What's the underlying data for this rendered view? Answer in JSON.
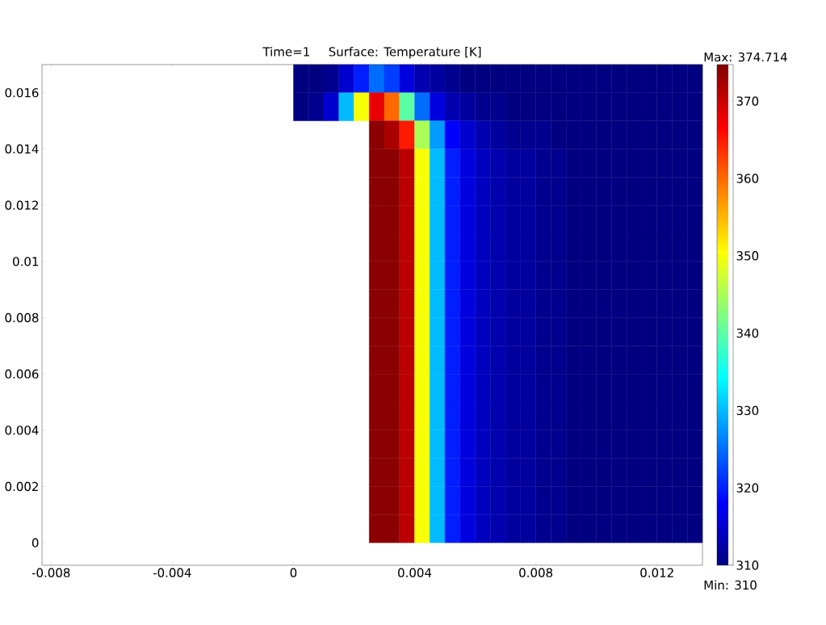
{
  "chart_data": {
    "type": "heatmap",
    "title": "Time=1",
    "subtitle": "Surface: Temperature [K]",
    "x": [
      0.00025,
      0.00075,
      0.00125,
      0.00175,
      0.00225,
      0.00275,
      0.00325,
      0.00375,
      0.00425,
      0.00475,
      0.00525,
      0.00575,
      0.00625,
      0.00675,
      0.00725,
      0.00775,
      0.00825,
      0.00875,
      0.00925,
      0.00975,
      0.01025,
      0.01075,
      0.01125,
      0.01175,
      0.01225,
      0.01275,
      0.01325
    ],
    "y": [
      0.0165,
      0.0155,
      0.0145,
      0.0135,
      0.0125,
      0.0115,
      0.0105,
      0.0095,
      0.0085,
      0.0075,
      0.0065,
      0.0055,
      0.0045,
      0.0035,
      0.0025,
      0.0015,
      0.0005
    ],
    "cells": [
      [
        310,
        310,
        311,
        315,
        320,
        325,
        322,
        316,
        313,
        312,
        311,
        310,
        310,
        310,
        310,
        310,
        310,
        310,
        310,
        310,
        310,
        310,
        310,
        310,
        310,
        310,
        310
      ],
      [
        310,
        311,
        315,
        330,
        350,
        368,
        360,
        340,
        325,
        316,
        313,
        312,
        311,
        311,
        310,
        310,
        310,
        310,
        310,
        310,
        310,
        310,
        310,
        310,
        310,
        310,
        310
      ],
      [
        null,
        null,
        null,
        null,
        null,
        374,
        372,
        365,
        345,
        328,
        318,
        315,
        313,
        312,
        311,
        311,
        311,
        310,
        310,
        310,
        310,
        310,
        310,
        310,
        310,
        310,
        310
      ],
      [
        null,
        null,
        null,
        null,
        null,
        374,
        374,
        371,
        350,
        330,
        320,
        316,
        314,
        313,
        312,
        312,
        311,
        311,
        310,
        310,
        310,
        310,
        310,
        310,
        310,
        310,
        310
      ],
      [
        null,
        null,
        null,
        null,
        null,
        374,
        374,
        371,
        350,
        330,
        320,
        316,
        314,
        313,
        312,
        312,
        311,
        311,
        310,
        310,
        310,
        310,
        310,
        310,
        310,
        310,
        310
      ],
      [
        null,
        null,
        null,
        null,
        null,
        374,
        374,
        371,
        350,
        330,
        320,
        316,
        314,
        313,
        312,
        312,
        311,
        311,
        310,
        310,
        310,
        310,
        310,
        310,
        310,
        310,
        310
      ],
      [
        null,
        null,
        null,
        null,
        null,
        374,
        374,
        371,
        350,
        330,
        320,
        316,
        314,
        313,
        312,
        312,
        311,
        311,
        310,
        310,
        310,
        310,
        310,
        310,
        310,
        310,
        310
      ],
      [
        null,
        null,
        null,
        null,
        null,
        374,
        374,
        371,
        350,
        330,
        320,
        316,
        314,
        313,
        312,
        312,
        311,
        311,
        310,
        310,
        310,
        310,
        310,
        310,
        310,
        310,
        310
      ],
      [
        null,
        null,
        null,
        null,
        null,
        374,
        374,
        371,
        350,
        330,
        320,
        316,
        314,
        313,
        312,
        312,
        311,
        311,
        310,
        310,
        310,
        310,
        310,
        310,
        310,
        310,
        310
      ],
      [
        null,
        null,
        null,
        null,
        null,
        374,
        374,
        371,
        350,
        330,
        320,
        316,
        314,
        313,
        312,
        312,
        311,
        311,
        310,
        310,
        310,
        310,
        310,
        310,
        310,
        310,
        310
      ],
      [
        null,
        null,
        null,
        null,
        null,
        374,
        374,
        371,
        350,
        330,
        320,
        316,
        314,
        313,
        312,
        312,
        311,
        311,
        310,
        310,
        310,
        310,
        310,
        310,
        310,
        310,
        310
      ],
      [
        null,
        null,
        null,
        null,
        null,
        374,
        374,
        371,
        350,
        330,
        320,
        316,
        314,
        313,
        312,
        312,
        311,
        311,
        310,
        310,
        310,
        310,
        310,
        310,
        310,
        310,
        310
      ],
      [
        null,
        null,
        null,
        null,
        null,
        374,
        374,
        371,
        350,
        330,
        320,
        316,
        314,
        313,
        312,
        312,
        311,
        311,
        310,
        310,
        310,
        310,
        310,
        310,
        310,
        310,
        310
      ],
      [
        null,
        null,
        null,
        null,
        null,
        374,
        374,
        371,
        350,
        330,
        320,
        316,
        314,
        313,
        312,
        312,
        311,
        311,
        310,
        310,
        310,
        310,
        310,
        310,
        310,
        310,
        310
      ],
      [
        null,
        null,
        null,
        null,
        null,
        374,
        374,
        371,
        350,
        330,
        320,
        316,
        314,
        313,
        312,
        312,
        311,
        311,
        310,
        310,
        310,
        310,
        310,
        310,
        310,
        310,
        310
      ],
      [
        null,
        null,
        null,
        null,
        null,
        374,
        374,
        371,
        350,
        330,
        320,
        316,
        314,
        313,
        312,
        312,
        311,
        311,
        310,
        310,
        310,
        310,
        310,
        310,
        310,
        310,
        310
      ],
      [
        null,
        null,
        null,
        null,
        null,
        374,
        374,
        371,
        350,
        330,
        320,
        316,
        314,
        313,
        312,
        312,
        311,
        311,
        310,
        310,
        310,
        310,
        310,
        310,
        310,
        310,
        310
      ]
    ],
    "xlim": [
      -0.0083,
      0.0135
    ],
    "ylim": [
      -0.0008,
      0.017
    ],
    "xticks": [
      -0.008,
      -0.004,
      0,
      0.004,
      0.008,
      0.012
    ],
    "yticks": [
      0,
      0.002,
      0.004,
      0.006,
      0.008,
      0.01,
      0.012,
      0.014,
      0.016
    ],
    "clim": [
      310,
      374.714
    ],
    "cticks": [
      310,
      320,
      330,
      340,
      350,
      360,
      370
    ],
    "annotations": [
      "Max: 374.714",
      "Min: 310"
    ]
  }
}
